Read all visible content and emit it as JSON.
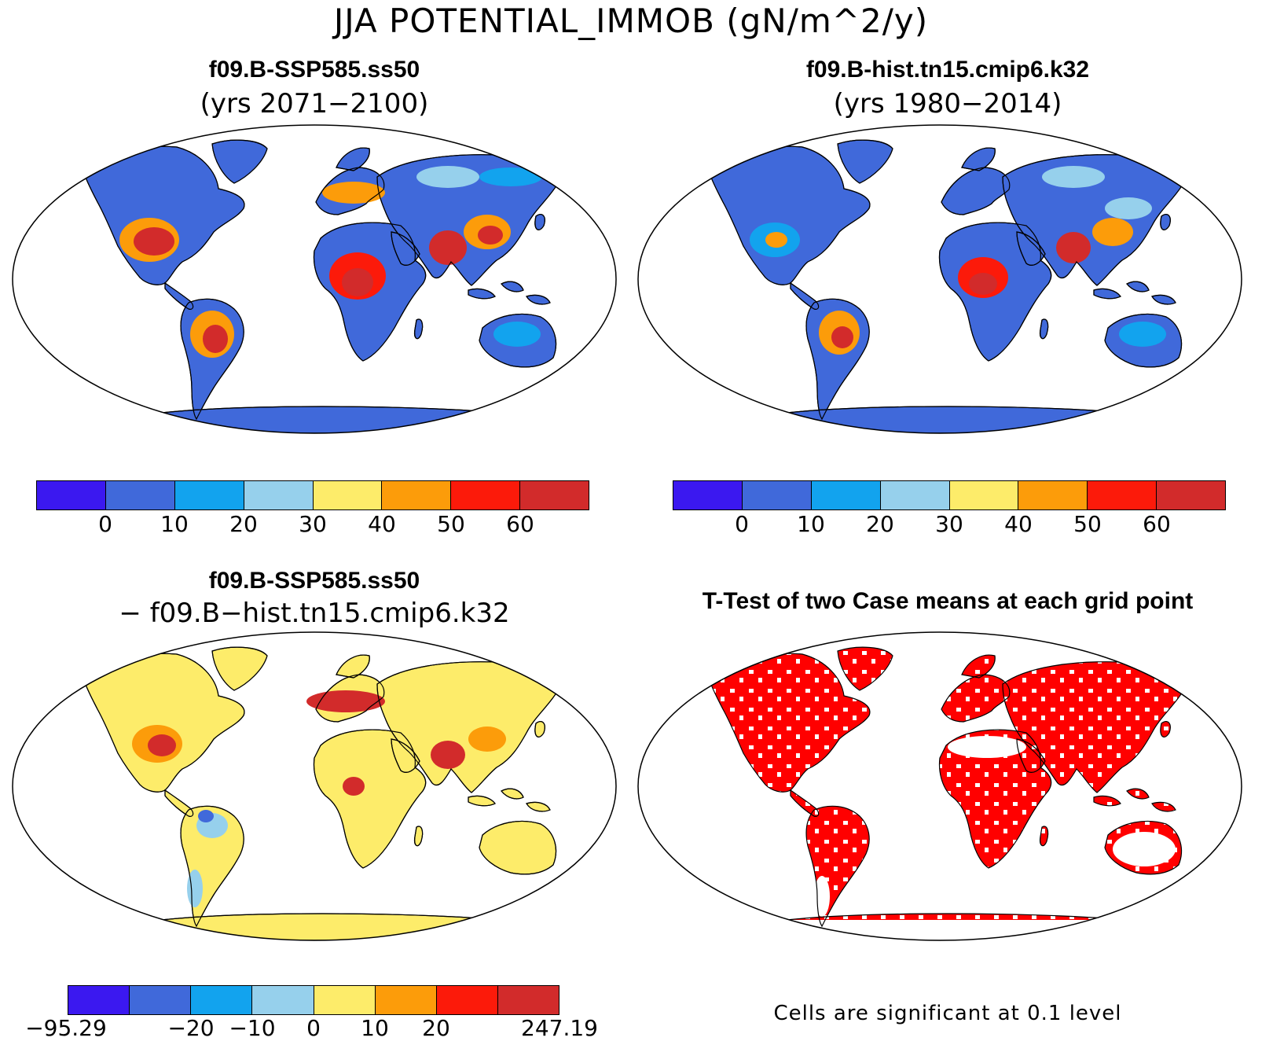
{
  "title": "JJA POTENTIAL_IMMOB (gN/m^2/y)",
  "panels": [
    {
      "title": "f09.B-SSP585.ss50",
      "subtitle": "(yrs 2071−2100)"
    },
    {
      "title": "f09.B-hist.tn15.cmip6.k32",
      "subtitle": "(yrs 1980−2014)"
    },
    {
      "title": "f09.B-SSP585.ss50",
      "subtitle": "− f09.B−hist.tn15.cmip6.k32"
    },
    {
      "title": "T-Test of two Case means at each grid point",
      "subtitle": ""
    }
  ],
  "colorbars": [
    {
      "colors": [
        "#3b18f0",
        "#4069da",
        "#12a3ee",
        "#96d0ec",
        "#fdec6a",
        "#fc9c0a",
        "#fc1a0a",
        "#d22b2b"
      ],
      "ticks": [
        "0",
        "10",
        "20",
        "30",
        "40",
        "50",
        "60"
      ]
    },
    {
      "colors": [
        "#3b18f0",
        "#4069da",
        "#12a3ee",
        "#96d0ec",
        "#fdec6a",
        "#fc9c0a",
        "#fc1a0a",
        "#d22b2b"
      ],
      "ticks": [
        "0",
        "10",
        "20",
        "30",
        "40",
        "50",
        "60"
      ]
    },
    {
      "colors": [
        "#3b18f0",
        "#4069da",
        "#12a3ee",
        "#96d0ec",
        "#fdec6a",
        "#fc9c0a",
        "#fc1a0a",
        "#d22b2b"
      ],
      "ticks": [
        "−95.29",
        "−20",
        "−10",
        "0",
        "10",
        "20",
        "247.19"
      ]
    }
  ],
  "significance_note": "Cells are significant at 0.1 level",
  "significance_color": "#ff0000"
}
